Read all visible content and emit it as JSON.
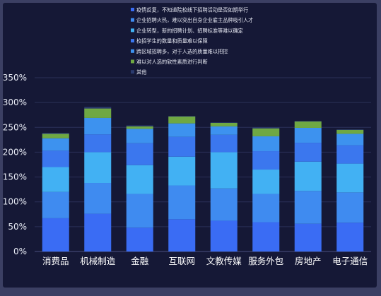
{
  "chart_data": {
    "type": "bar",
    "stacked": true,
    "title": "",
    "xlabel": "",
    "ylabel": "",
    "ylim": [
      0,
      350
    ],
    "y_ticks": [
      "0%",
      "50%",
      "100%",
      "150%",
      "200%",
      "250%",
      "300%",
      "350%"
    ],
    "grid": true,
    "legend_placement": "top-center",
    "categories": [
      "消费品",
      "机械制造",
      "金融",
      "互联网",
      "文教传媒",
      "服务外包",
      "房地产",
      "电子通信"
    ],
    "series": [
      {
        "name": "疫情反复，不知道院校线下招聘活动是否如期举行",
        "color": "#3a6cf4",
        "values": [
          67,
          76,
          48,
          65,
          62,
          59,
          56,
          58
        ]
      },
      {
        "name": "企业招聘火热，难以突出自身企业雇主品牌吸引人才",
        "color": "#3f8bf0",
        "values": [
          53,
          62,
          68,
          68,
          65,
          57,
          66,
          61
        ]
      },
      {
        "name": "企业转型，新的招聘计划、招聘标准等难以确定",
        "color": "#42b1f3",
        "values": [
          50,
          62,
          58,
          58,
          73,
          49,
          59,
          58
        ]
      },
      {
        "name": "校招学生的数量和质量难以保障",
        "color": "#3b77ee",
        "values": [
          33,
          36,
          44,
          40,
          35,
          37,
          38,
          37
        ]
      },
      {
        "name": "跨区域招聘多，对于人选的质量难以把控",
        "color": "#3d92ef",
        "values": [
          25,
          33,
          29,
          27,
          17,
          30,
          30,
          23
        ]
      },
      {
        "name": "难以对人选的软性素质进行判断",
        "color": "#6fa843",
        "values": [
          9,
          19,
          5,
          14,
          7,
          16,
          13,
          8
        ]
      },
      {
        "name": "其他",
        "color": "#2a3a6e",
        "values": [
          2,
          3,
          2,
          1,
          1,
          2,
          1,
          1
        ]
      }
    ]
  }
}
